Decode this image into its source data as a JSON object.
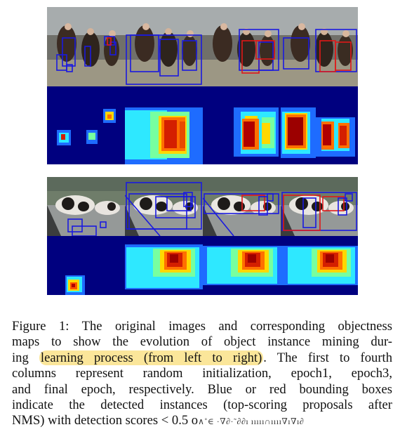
{
  "figure": {
    "rows": [
      {
        "id": "horses"
      },
      {
        "id": "cows"
      }
    ]
  },
  "caption": {
    "line1": "Figure 1: The original images and corresponding objectness",
    "line2": "maps to show the evolution of object instance mining dur-",
    "line3_pre": "ing ",
    "line3_highlight": "learning process (from left to right)",
    "line3_post": ". The first to fourth",
    "line4": "columns represent random initialization, epoch1, epoch3,",
    "line5": "and final epoch, respectively. Blue or red bounding boxes",
    "line6": "indicate the detected instances (top-scoring proposals after",
    "line7_pre": "NMS) with detection scores < 0.5 o",
    "line7_garbled": "∧˚∈ ·∇∂·˜∂∂ı ııııı∩ıııı∇ı∇ı∂"
  },
  "colors": {
    "box_blue": "#1a1adf",
    "box_red": "#e01818",
    "heat_low": "#00007f",
    "highlight": "#fbe69a"
  }
}
